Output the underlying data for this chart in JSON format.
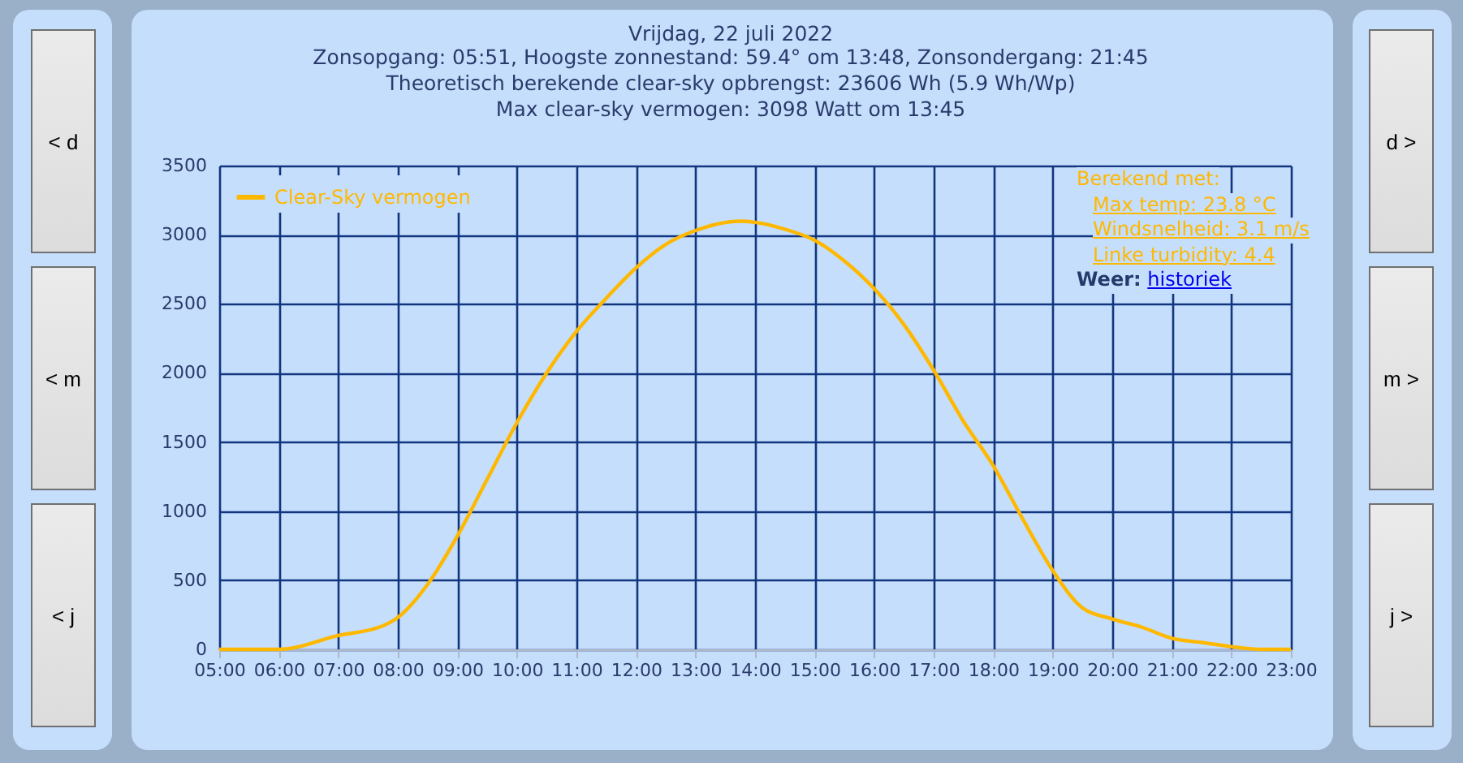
{
  "chart_data": {
    "type": "line",
    "title": "Vrijdag, 22 juli 2022",
    "subtitle": "Zonsopgang: 05:51, Hoogste zonnestand: 59.4° om 13:48, Zonsondergang: 21:45\nTheoretisch berekende clear-sky opbrengst: 23606 Wh (5.9 Wh/Wp)\nMax clear-sky vermogen: 3098 Watt om 13:45",
    "x": [
      5,
      6,
      7,
      7.75,
      8,
      8.5,
      9,
      9.5,
      10,
      10.5,
      11,
      11.5,
      12,
      12.5,
      13,
      13.75,
      14,
      14.5,
      15,
      15.5,
      16,
      16.5,
      17,
      17.5,
      18,
      18.5,
      19,
      19.5,
      20,
      20.5,
      21,
      21.5,
      22,
      22.5,
      23
    ],
    "series": [
      {
        "name": "Clear-Sky vermogen",
        "color": "#ffb800",
        "values": [
          0,
          0,
          100,
          170,
          230,
          470,
          820,
          1230,
          1640,
          2000,
          2300,
          2540,
          2760,
          2930,
          3030,
          3098,
          3090,
          3040,
          2960,
          2810,
          2610,
          2350,
          2020,
          1650,
          1330,
          940,
          570,
          300,
          220,
          160,
          80,
          50,
          20,
          0,
          0
        ]
      }
    ],
    "xlim": [
      5,
      23
    ],
    "xticks": [
      {
        "value": 5,
        "label": "05:00"
      },
      {
        "value": 6,
        "label": "06:00"
      },
      {
        "value": 7,
        "label": "07:00"
      },
      {
        "value": 8,
        "label": "08:00"
      },
      {
        "value": 9,
        "label": "09:00"
      },
      {
        "value": 10,
        "label": "10:00"
      },
      {
        "value": 11,
        "label": "11:00"
      },
      {
        "value": 12,
        "label": "12:00"
      },
      {
        "value": 13,
        "label": "13:00"
      },
      {
        "value": 14,
        "label": "14:00"
      },
      {
        "value": 15,
        "label": "15:00"
      },
      {
        "value": 16,
        "label": "16:00"
      },
      {
        "value": 17,
        "label": "17:00"
      },
      {
        "value": 18,
        "label": "18:00"
      },
      {
        "value": 19,
        "label": "19:00"
      },
      {
        "value": 20,
        "label": "20:00"
      },
      {
        "value": 21,
        "label": "21:00"
      },
      {
        "value": 22,
        "label": "22:00"
      },
      {
        "value": 23,
        "label": "23:00"
      }
    ],
    "ylim": [
      0,
      3500
    ],
    "yticks": [
      0,
      500,
      1000,
      1500,
      2000,
      2500,
      3000,
      3500
    ],
    "grid": true,
    "legend": "top left",
    "marker": "none",
    "line_style": "solid",
    "annotations": [
      "< d",
      "< m",
      "< j",
      "d >",
      "m >",
      "j >",
      "Berekend met:",
      "Max temp: 23.8 °C",
      "Windsnelheid: 3.1 m/s",
      "Linke turbidity: 4.4",
      "Weer:",
      "historiek"
    ]
  }
}
